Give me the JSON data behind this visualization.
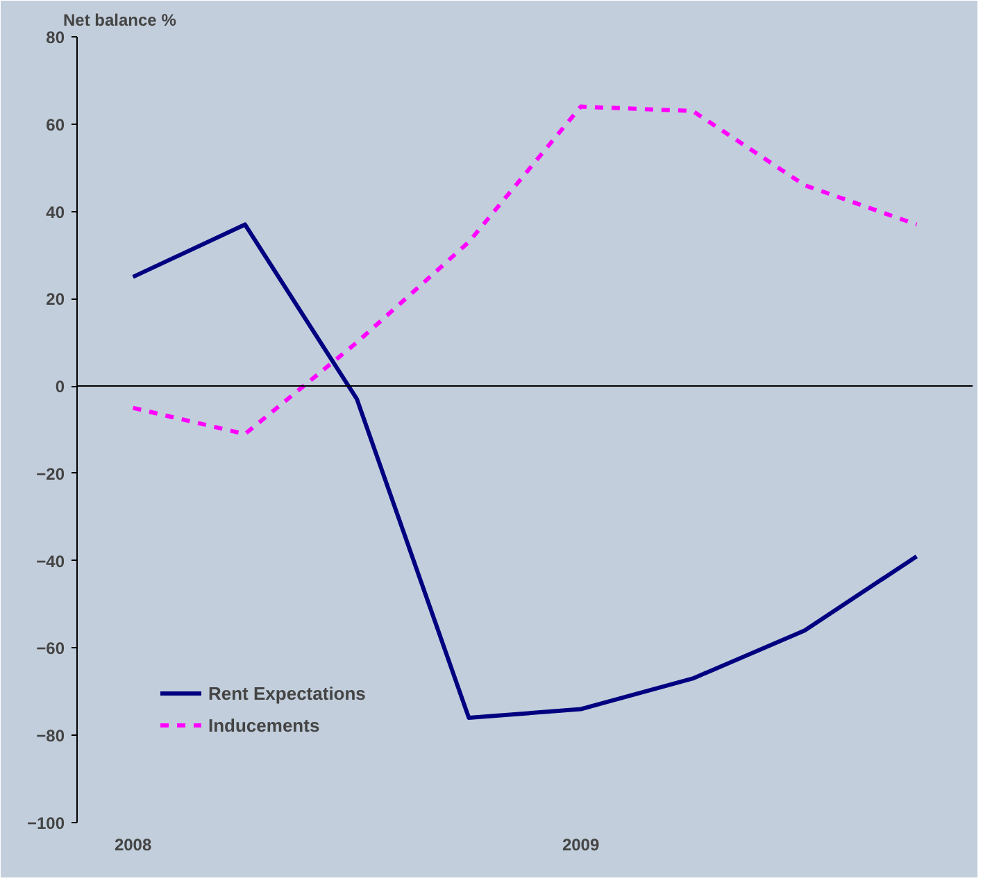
{
  "chart_data": {
    "type": "line",
    "ylabel": "Net balance %",
    "categories": [
      "2008",
      null,
      null,
      null,
      "2009",
      null,
      null,
      null
    ],
    "series": [
      {
        "name": "Rent Expectations",
        "color": "#000080",
        "line_style": "solid",
        "values": [
          25,
          37,
          -3,
          -76,
          -74,
          -67,
          -56,
          -39
        ]
      },
      {
        "name": "Inducements",
        "color": "#ff00ff",
        "line_style": "dashed",
        "values": [
          -5,
          -11,
          10,
          33,
          64,
          63,
          46,
          37
        ]
      }
    ],
    "ylim": [
      -100,
      80
    ],
    "yticks": [
      -100,
      -80,
      -60,
      -40,
      -20,
      0,
      20,
      40,
      60,
      80
    ],
    "ref_lines": [
      {
        "axis": "y",
        "value": 0,
        "color": "#000000"
      }
    ],
    "grid": false,
    "legend": "bottom left",
    "marker": "none"
  }
}
